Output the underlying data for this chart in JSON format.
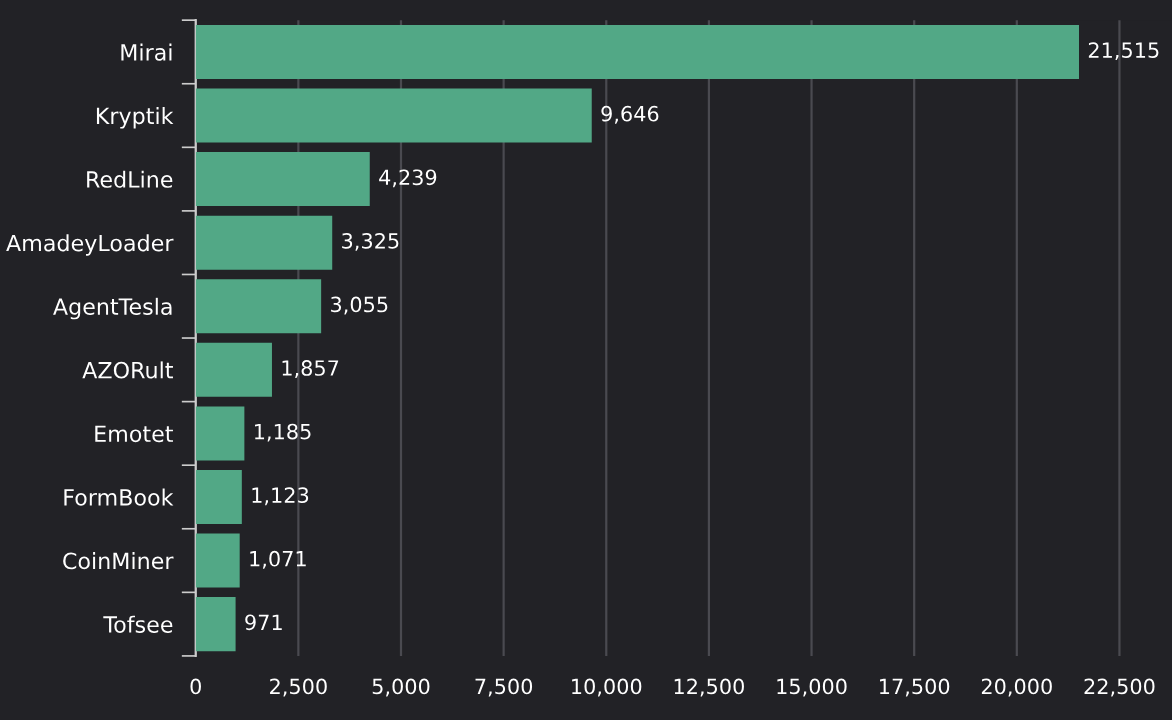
{
  "chart_data": {
    "type": "bar",
    "orientation": "horizontal",
    "categories": [
      "Mirai",
      "Kryptik",
      "RedLine",
      "AmadeyLoader",
      "AgentTesla",
      "AZORult",
      "Emotet",
      "FormBook",
      "CoinMiner",
      "Tofsee"
    ],
    "values": [
      21515,
      9646,
      4239,
      3325,
      3055,
      1857,
      1185,
      1123,
      1071,
      971
    ],
    "value_labels": [
      "21,515",
      "9,646",
      "4,239",
      "3,325",
      "3,055",
      "1,857",
      "1,185",
      "1,123",
      "1,071",
      "971"
    ],
    "color": "#52a886",
    "xlim": [
      0,
      23780
    ],
    "xticks": [
      0,
      {
        "value": 2500,
        "label": "2,500"
      },
      {
        "value": 5000,
        "label": "5,000"
      },
      {
        "value": 7500,
        "label": "7,500"
      },
      {
        "value": 10000,
        "label": "10,000"
      },
      {
        "value": 12500,
        "label": "12,500"
      },
      {
        "value": 15000,
        "label": "15,000"
      },
      {
        "value": 17500,
        "label": "17,500"
      },
      {
        "value": 20000,
        "label": "20,000"
      },
      {
        "value": 22500,
        "label": "22,500"
      }
    ],
    "grid": "x",
    "legend": false
  }
}
